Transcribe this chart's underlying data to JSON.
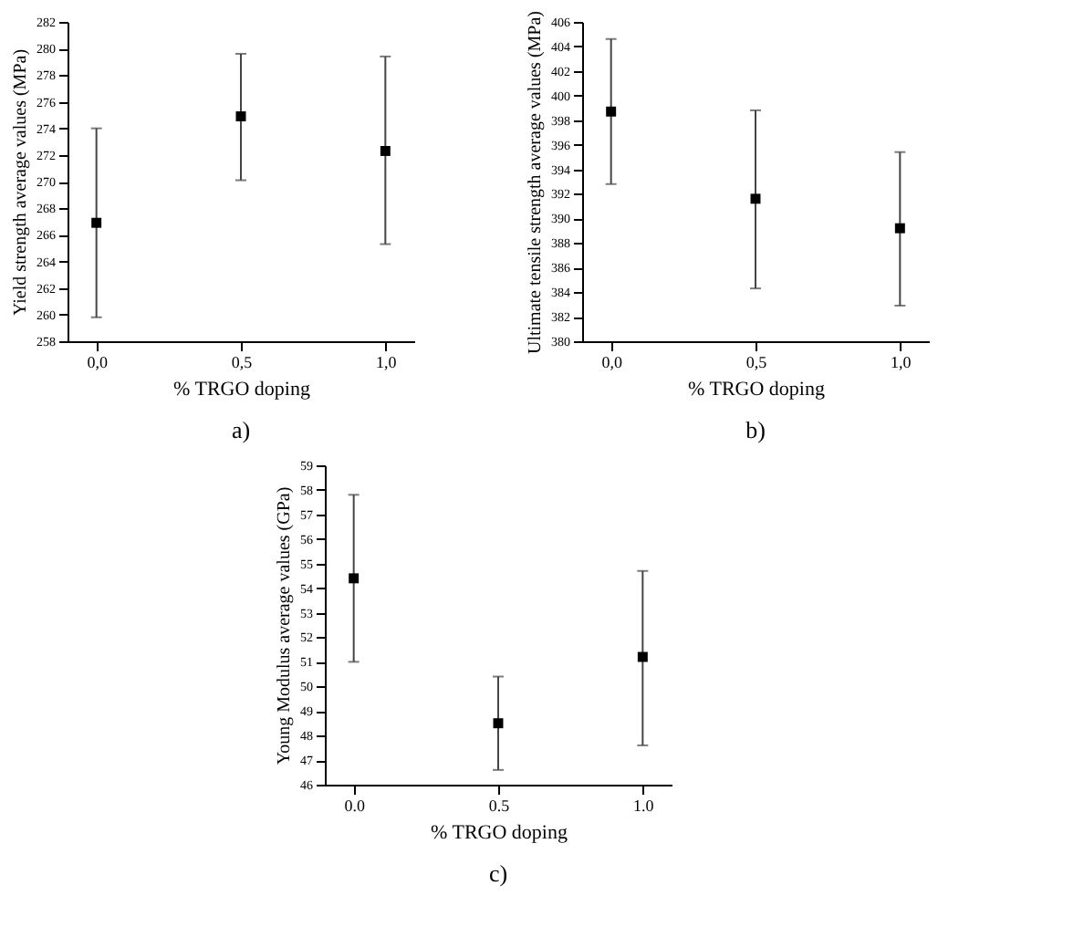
{
  "chart_data": [
    {
      "type": "scatter",
      "ylabel": "Yield strength average values (MPa)",
      "xlabel": "% TRGO doping",
      "annotations": [
        "a)"
      ],
      "x": [
        0.0,
        0.5,
        1.0
      ],
      "values": [
        266.9,
        274.9,
        272.3
      ],
      "errors": [
        [
          259.8,
          274.0
        ],
        [
          270.1,
          279.6
        ],
        [
          265.3,
          279.4
        ]
      ],
      "color": "#000000",
      "marker": "square",
      "grid": false,
      "xlim": [
        -0.1,
        1.1
      ],
      "xticks": [
        {
          "value": 0.0,
          "label": "0,0"
        },
        {
          "value": 0.5,
          "label": "0,5"
        },
        {
          "value": 1.0,
          "label": "1,0"
        }
      ],
      "ylim": [
        258,
        282
      ],
      "yticks": [
        258,
        260,
        262,
        264,
        266,
        268,
        270,
        272,
        274,
        276,
        278,
        280,
        282
      ]
    },
    {
      "type": "scatter",
      "ylabel": "Ultimate tensile strength average values (MPa)",
      "xlabel": "% TRGO doping",
      "annotations": [
        "b)"
      ],
      "x": [
        0.0,
        0.5,
        1.0
      ],
      "values": [
        398.7,
        391.6,
        389.2
      ],
      "errors": [
        [
          392.8,
          404.6
        ],
        [
          384.3,
          398.8
        ],
        [
          382.9,
          395.4
        ]
      ],
      "color": "#000000",
      "marker": "square",
      "grid": false,
      "xlim": [
        -0.1,
        1.1
      ],
      "xticks": [
        {
          "value": 0.0,
          "label": "0,0"
        },
        {
          "value": 0.5,
          "label": "0,5"
        },
        {
          "value": 1.0,
          "label": "1,0"
        }
      ],
      "ylim": [
        380,
        406
      ],
      "yticks": [
        380,
        382,
        384,
        386,
        388,
        390,
        392,
        394,
        396,
        398,
        400,
        402,
        404,
        406
      ]
    },
    {
      "type": "scatter",
      "ylabel": "Young Modulus average values (GPa)",
      "xlabel": "% TRGO doping",
      "annotations": [
        "c)"
      ],
      "x": [
        0.0,
        0.5,
        1.0
      ],
      "values": [
        54.4,
        48.5,
        51.2
      ],
      "errors": [
        [
          51.0,
          57.8
        ],
        [
          46.6,
          50.4
        ],
        [
          47.6,
          54.7
        ]
      ],
      "color": "#000000",
      "marker": "square",
      "grid": false,
      "xlim": [
        -0.1,
        1.1
      ],
      "xticks": [
        {
          "value": 0.0,
          "label": "0.0"
        },
        {
          "value": 0.5,
          "label": "0.5"
        },
        {
          "value": 1.0,
          "label": "1.0"
        }
      ],
      "ylim": [
        46,
        59
      ],
      "yticks": [
        46,
        47,
        48,
        49,
        50,
        51,
        52,
        53,
        54,
        55,
        56,
        57,
        58,
        59
      ]
    }
  ]
}
